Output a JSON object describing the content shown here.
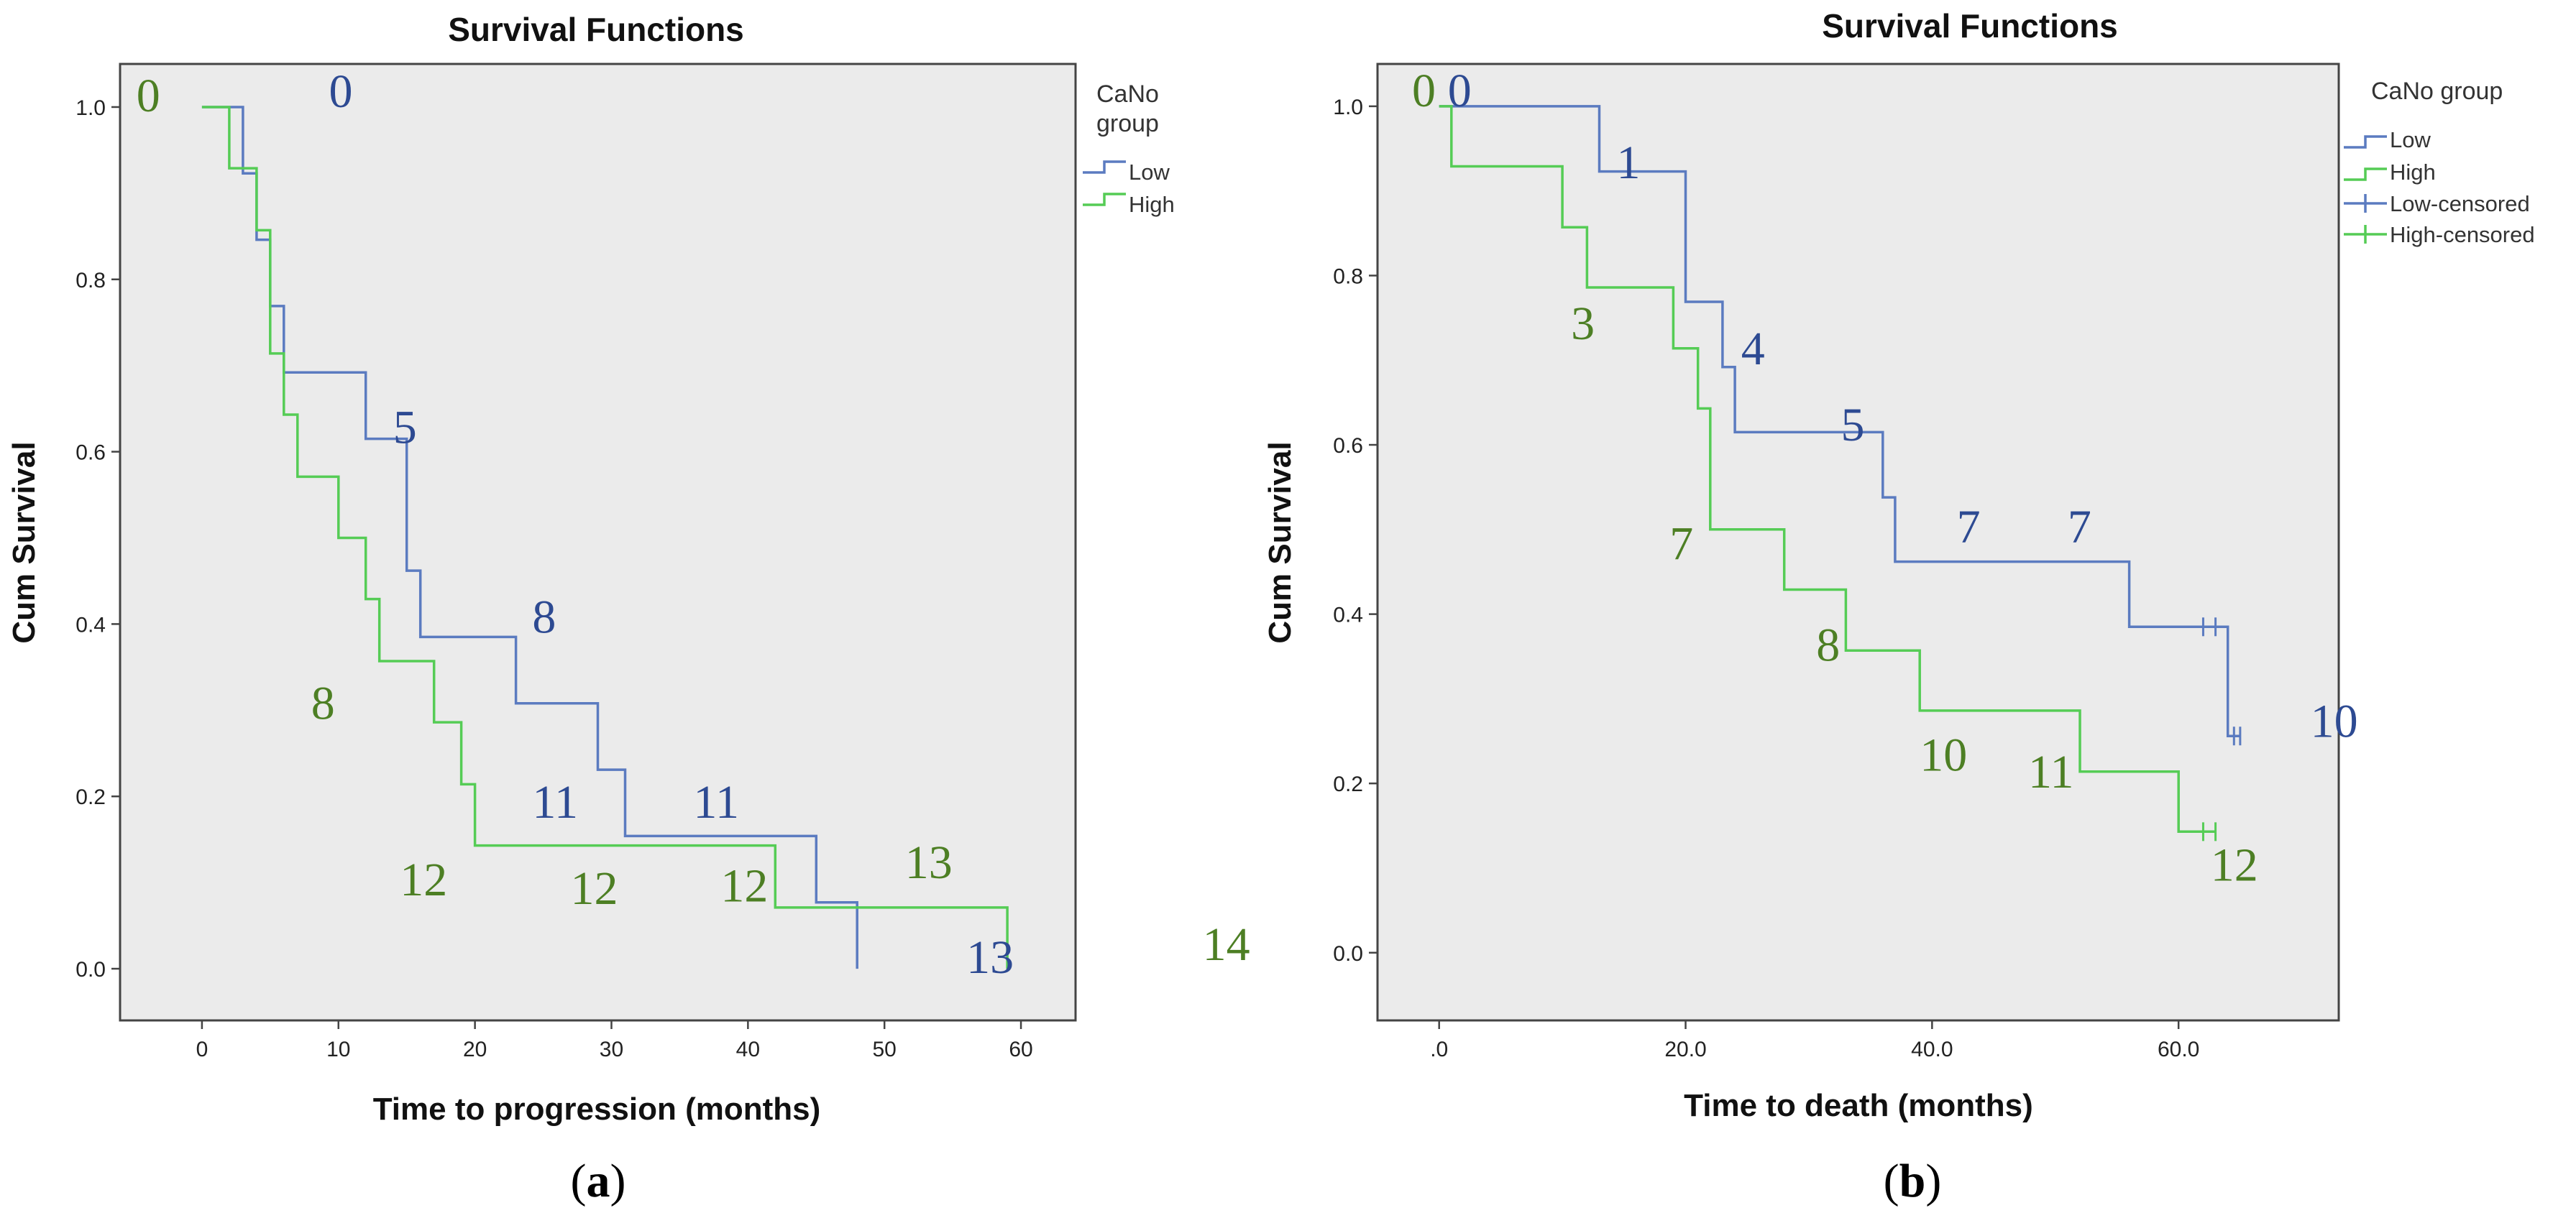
{
  "colors": {
    "low": "#5b7bc0",
    "high": "#55cc55",
    "low_label": "#2d4a92",
    "high_label": "#4d7f24",
    "plot_bg": "#ebebeb",
    "frame": "#444444"
  },
  "chart_data": [
    {
      "type": "line",
      "subtype": "kaplan-meier",
      "panel_label": "(a)",
      "panel_letter": "a",
      "title": "Survival Functions",
      "xlabel": "Time to progression (months)",
      "ylabel": "Cum Survival",
      "xlim": [
        -6,
        64
      ],
      "ylim": [
        -0.06,
        1.05
      ],
      "xticks": [
        0,
        10,
        20,
        30,
        40,
        50,
        60
      ],
      "xtick_labels": [
        "0",
        "10",
        "20",
        "30",
        "40",
        "50",
        "60"
      ],
      "yticks": [
        0.0,
        0.2,
        0.4,
        0.6,
        0.8,
        1.0
      ],
      "ytick_labels": [
        "0.0",
        "0.2",
        "0.4",
        "0.6",
        "0.8",
        "1.0"
      ],
      "legend": {
        "title_lines": [
          "CaNo",
          "group"
        ],
        "entries": [
          "Low",
          "High"
        ],
        "position": "right"
      },
      "series": [
        {
          "name": "Low",
          "steps": [
            [
              0,
              1.0
            ],
            [
              3,
              0.923
            ],
            [
              4,
              0.846
            ],
            [
              5,
              0.769
            ],
            [
              6,
              0.692
            ],
            [
              12,
              0.615
            ],
            [
              15,
              0.462
            ],
            [
              16,
              0.385
            ],
            [
              23,
              0.308
            ],
            [
              29,
              0.231
            ],
            [
              31,
              0.154
            ],
            [
              45,
              0.077
            ],
            [
              48,
              0.0
            ]
          ],
          "censored": []
        },
        {
          "name": "High",
          "steps": [
            [
              0,
              1.0
            ],
            [
              2,
              0.929
            ],
            [
              4,
              0.857
            ],
            [
              5,
              0.714
            ],
            [
              6,
              0.643
            ],
            [
              7,
              0.571
            ],
            [
              10,
              0.5
            ],
            [
              12,
              0.429
            ],
            [
              13,
              0.357
            ],
            [
              17,
              0.286
            ],
            [
              19,
              0.214
            ],
            [
              20,
              0.143
            ],
            [
              42,
              0.071
            ],
            [
              59,
              0.0
            ]
          ],
          "censored": []
        }
      ],
      "annotations": [
        {
          "text": "0",
          "series": "Low",
          "x": 9.3,
          "y": 1.0
        },
        {
          "text": "0",
          "series": "High",
          "x": -4.8,
          "y": 0.995
        },
        {
          "text": "5",
          "series": "Low",
          "x": 14.0,
          "y": 0.61
        },
        {
          "text": "8",
          "series": "Low",
          "x": 24.2,
          "y": 0.39
        },
        {
          "text": "8",
          "series": "High",
          "x": 8.0,
          "y": 0.29
        },
        {
          "text": "11",
          "series": "Low",
          "x": 24.2,
          "y": 0.175
        },
        {
          "text": "11",
          "series": "Low",
          "x": 36.0,
          "y": 0.175
        },
        {
          "text": "12",
          "series": "High",
          "x": 14.5,
          "y": 0.085
        },
        {
          "text": "12",
          "series": "High",
          "x": 27.0,
          "y": 0.075
        },
        {
          "text": "12",
          "series": "High",
          "x": 38.0,
          "y": 0.078
        },
        {
          "text": "13",
          "series": "High",
          "x": 51.5,
          "y": 0.105
        },
        {
          "text": "13",
          "series": "Low",
          "x": 56.0,
          "y": -0.005
        },
        {
          "text": "14",
          "series": "High",
          "x": 73.3,
          "y": 0.01
        }
      ]
    },
    {
      "type": "line",
      "subtype": "kaplan-meier",
      "panel_label": "(b)",
      "panel_letter": "b",
      "title": "Survival Functions",
      "xlabel": "Time to death (months)",
      "ylabel": "Cum Survival",
      "xlim": [
        -5,
        73
      ],
      "ylim": [
        -0.08,
        1.05
      ],
      "xticks": [
        0,
        20,
        40,
        60
      ],
      "xtick_labels": [
        ".0",
        "20.0",
        "40.0",
        "60.0"
      ],
      "yticks": [
        0.0,
        0.2,
        0.4,
        0.6,
        0.8,
        1.0
      ],
      "ytick_labels": [
        "0.0",
        "0.2",
        "0.4",
        "0.6",
        "0.8",
        "1.0"
      ],
      "legend": {
        "title_lines": [
          "CaNo group"
        ],
        "entries": [
          "Low",
          "High",
          "Low-censored",
          "High-censored"
        ],
        "position": "right"
      },
      "series": [
        {
          "name": "Low",
          "steps": [
            [
              0,
              1.0
            ],
            [
              13,
              0.923
            ],
            [
              20,
              0.769
            ],
            [
              23,
              0.692
            ],
            [
              24,
              0.615
            ],
            [
              36,
              0.538
            ],
            [
              37,
              0.462
            ],
            [
              56,
              0.385
            ],
            [
              64,
              0.256
            ]
          ],
          "end_x": 65,
          "censored": [
            [
              62,
              0.385
            ],
            [
              63,
              0.385
            ],
            [
              64.5,
              0.256
            ],
            [
              65,
              0.256
            ]
          ]
        },
        {
          "name": "High",
          "steps": [
            [
              0,
              1.0
            ],
            [
              1,
              0.929
            ],
            [
              10,
              0.857
            ],
            [
              12,
              0.786
            ],
            [
              19,
              0.714
            ],
            [
              21,
              0.643
            ],
            [
              22,
              0.5
            ],
            [
              28,
              0.429
            ],
            [
              33,
              0.357
            ],
            [
              39,
              0.286
            ],
            [
              52,
              0.214
            ],
            [
              60,
              0.143
            ]
          ],
          "end_x": 63,
          "censored": [
            [
              62,
              0.143
            ],
            [
              63,
              0.143
            ]
          ]
        }
      ],
      "annotations": [
        {
          "text": "0",
          "series": "High",
          "x": -2.2,
          "y": 1.0
        },
        {
          "text": "0",
          "series": "Low",
          "x": 0.7,
          "y": 1.0
        },
        {
          "text": "1",
          "series": "Low",
          "x": 14.4,
          "y": 0.915
        },
        {
          "text": "3",
          "series": "High",
          "x": 10.7,
          "y": 0.725
        },
        {
          "text": "4",
          "series": "Low",
          "x": 24.5,
          "y": 0.695
        },
        {
          "text": "5",
          "series": "Low",
          "x": 32.6,
          "y": 0.605
        },
        {
          "text": "7",
          "series": "Low",
          "x": 42.0,
          "y": 0.485
        },
        {
          "text": "7",
          "series": "Low",
          "x": 51.0,
          "y": 0.485
        },
        {
          "text": "7",
          "series": "High",
          "x": 18.7,
          "y": 0.465
        },
        {
          "text": "8",
          "series": "High",
          "x": 30.6,
          "y": 0.345
        },
        {
          "text": "10",
          "series": "High",
          "x": 39.0,
          "y": 0.215
        },
        {
          "text": "11",
          "series": "High",
          "x": 47.8,
          "y": 0.195
        },
        {
          "text": "10",
          "series": "Low",
          "x": 70.7,
          "y": 0.255
        },
        {
          "text": "12",
          "series": "High",
          "x": 62.6,
          "y": 0.085
        }
      ]
    }
  ]
}
